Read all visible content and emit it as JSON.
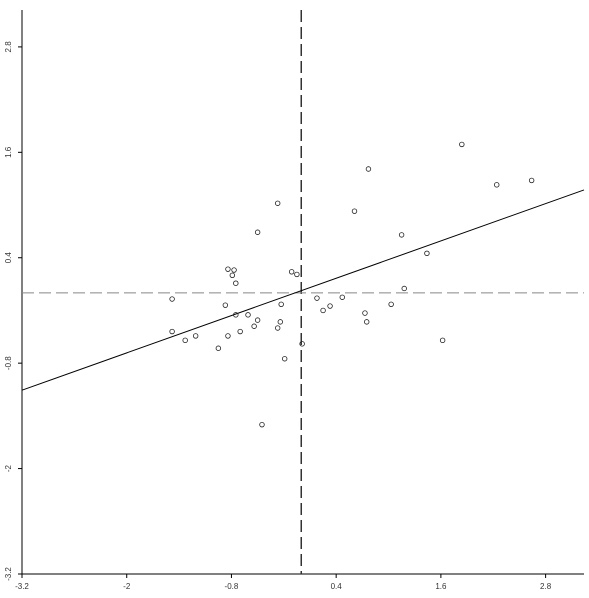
{
  "chart_data": {
    "type": "scatter",
    "x": [
      -1.48,
      -1.48,
      -1.33,
      -1.21,
      -0.95,
      -0.87,
      -0.84,
      -0.84,
      -0.79,
      -0.77,
      -0.75,
      -0.75,
      -0.7,
      -0.61,
      -0.54,
      -0.5,
      -0.5,
      -0.45,
      -0.27,
      -0.27,
      -0.24,
      -0.23,
      -0.19,
      -0.11,
      -0.05,
      0.01,
      0.18,
      0.25,
      0.33,
      0.47,
      0.61,
      0.73,
      0.75,
      0.77,
      1.03,
      1.15,
      1.18,
      1.44,
      1.62,
      1.84,
      2.24,
      2.64
    ],
    "values": [
      -0.07,
      -0.44,
      -0.54,
      -0.49,
      -0.63,
      -0.14,
      -0.49,
      0.27,
      0.2,
      0.26,
      0.11,
      -0.25,
      -0.44,
      -0.25,
      -0.38,
      -0.31,
      0.69,
      -1.5,
      1.02,
      -0.4,
      -0.33,
      -0.13,
      -0.75,
      0.24,
      0.21,
      -0.58,
      -0.06,
      -0.2,
      -0.15,
      -0.05,
      0.93,
      -0.23,
      -0.33,
      1.41,
      -0.13,
      0.66,
      0.05,
      0.45,
      -0.54,
      1.69,
      1.23,
      1.28
    ],
    "color": "#222222",
    "xlim": [
      -3.2,
      3.24
    ],
    "ylim": [
      -3.2,
      3.22
    ],
    "xticks": [
      -3.2,
      -2,
      -0.8,
      0.4,
      1.6,
      2.8
    ],
    "yticks": [
      -3.2,
      -2,
      -0.8,
      0.4,
      1.6,
      2.8
    ],
    "regression": {
      "slope": 0.354,
      "intercept": 0.025
    },
    "reference_lines": {
      "x": 0,
      "y": 0
    }
  }
}
